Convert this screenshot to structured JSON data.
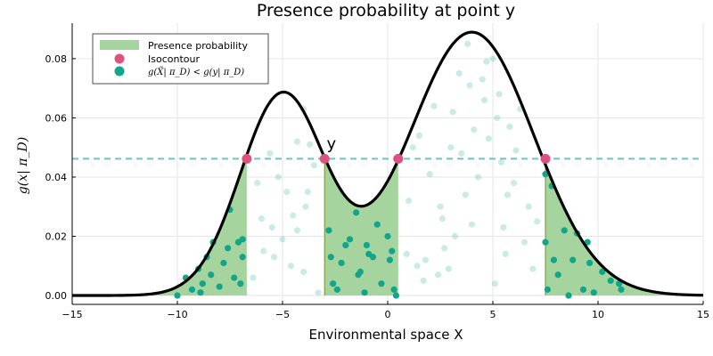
{
  "chart_data": {
    "type": "area",
    "title": "Presence probability at point y",
    "xlabel": "Environmental space X",
    "ylabel": "g(x| π_D)",
    "xlim": [
      -15,
      15
    ],
    "ylim": [
      -0.003,
      0.092
    ],
    "xticks": [
      -15,
      -10,
      -5,
      0,
      5,
      10,
      15
    ],
    "xtick_labels": [
      "−15",
      "−10",
      "−5",
      "0",
      "5",
      "10",
      "15"
    ],
    "yticks": [
      0.0,
      0.02,
      0.04,
      0.06,
      0.08
    ],
    "ytick_labels": [
      "0.00",
      "0.02",
      "0.04",
      "0.06",
      "0.08"
    ],
    "grid": true,
    "legend_position": "top-left",
    "colors": {
      "fill": "#a6d49f",
      "curve": "#000000",
      "isocontour": "#e0517f",
      "points": "#12a58a",
      "threshold_line": "#6cc3cb"
    },
    "density_components": [
      {
        "weight": 0.34,
        "mean": -5.0,
        "sd": 2.0
      },
      {
        "weight": 0.66,
        "mean": 4.0,
        "sd": 2.96
      }
    ],
    "threshold": 0.0462,
    "filled_intervals": [
      [
        -15,
        -6.7
      ],
      [
        -3.0,
        0.5
      ],
      [
        7.5,
        15
      ]
    ],
    "annotation": {
      "text": "y",
      "x": -2.9,
      "y": 0.0495
    },
    "isocontour_points": [
      {
        "x": -6.7,
        "y": 0.0462
      },
      {
        "x": -3.0,
        "y": 0.0462
      },
      {
        "x": 0.5,
        "y": 0.0462
      },
      {
        "x": 7.5,
        "y": 0.0462
      }
    ],
    "series": [
      {
        "name": "Presence probability",
        "kind": "filled-area"
      },
      {
        "name": "Isocontour",
        "kind": "marker"
      },
      {
        "name": "g(X̃| π_D) < g(y| π_D)",
        "kind": "scatter"
      }
    ],
    "points_below": [
      {
        "x": -10.0,
        "y": 0.0
      },
      {
        "x": -9.6,
        "y": 0.006
      },
      {
        "x": -9.3,
        "y": 0.002
      },
      {
        "x": -9.0,
        "y": 0.009
      },
      {
        "x": -8.8,
        "y": 0.004
      },
      {
        "x": -8.6,
        "y": 0.013
      },
      {
        "x": -8.4,
        "y": 0.007
      },
      {
        "x": -8.3,
        "y": 0.018
      },
      {
        "x": -8.0,
        "y": 0.003
      },
      {
        "x": -7.8,
        "y": 0.011
      },
      {
        "x": -7.6,
        "y": 0.016
      },
      {
        "x": -7.5,
        "y": 0.029
      },
      {
        "x": -7.3,
        "y": 0.006
      },
      {
        "x": -7.1,
        "y": 0.018
      },
      {
        "x": -6.9,
        "y": 0.019
      },
      {
        "x": -6.9,
        "y": 0.013
      },
      {
        "x": -7.0,
        "y": 0.004
      },
      {
        "x": -8.9,
        "y": 0.001
      },
      {
        "x": -2.8,
        "y": 0.022
      },
      {
        "x": -2.6,
        "y": 0.004
      },
      {
        "x": -2.4,
        "y": 0.002
      },
      {
        "x": -2.2,
        "y": 0.011
      },
      {
        "x": -2.0,
        "y": 0.017
      },
      {
        "x": -1.8,
        "y": 0.019
      },
      {
        "x": -1.5,
        "y": 0.028
      },
      {
        "x": -1.4,
        "y": 0.007
      },
      {
        "x": -1.3,
        "y": 0.008
      },
      {
        "x": -1.0,
        "y": 0.017
      },
      {
        "x": -0.9,
        "y": 0.014
      },
      {
        "x": -0.7,
        "y": 0.013
      },
      {
        "x": -0.5,
        "y": 0.024
      },
      {
        "x": -0.3,
        "y": 0.004
      },
      {
        "x": 0.0,
        "y": 0.02
      },
      {
        "x": 0.1,
        "y": 0.012
      },
      {
        "x": 0.2,
        "y": 0.015
      },
      {
        "x": 0.3,
        "y": 0.002
      },
      {
        "x": 0.4,
        "y": 0.0
      },
      {
        "x": -1.1,
        "y": 0.001
      },
      {
        "x": -2.7,
        "y": 0.013
      },
      {
        "x": 7.5,
        "y": 0.041
      },
      {
        "x": 7.5,
        "y": 0.018
      },
      {
        "x": 7.6,
        "y": 0.002
      },
      {
        "x": 7.8,
        "y": 0.037
      },
      {
        "x": 7.9,
        "y": 0.012
      },
      {
        "x": 8.1,
        "y": 0.007
      },
      {
        "x": 8.4,
        "y": 0.022
      },
      {
        "x": 8.6,
        "y": 0.0
      },
      {
        "x": 8.8,
        "y": 0.012
      },
      {
        "x": 9.0,
        "y": 0.021
      },
      {
        "x": 9.3,
        "y": 0.002
      },
      {
        "x": 9.5,
        "y": 0.018
      },
      {
        "x": 9.6,
        "y": 0.011
      },
      {
        "x": 9.8,
        "y": 0.001
      },
      {
        "x": 10.2,
        "y": 0.008
      },
      {
        "x": 10.6,
        "y": 0.005
      },
      {
        "x": 11.0,
        "y": 0.004
      },
      {
        "x": 11.1,
        "y": 0.002
      }
    ],
    "points_above": [
      {
        "x": -5.6,
        "y": 0.048
      },
      {
        "x": -5.2,
        "y": 0.04
      },
      {
        "x": -5.5,
        "y": 0.023
      },
      {
        "x": -6.2,
        "y": 0.038
      },
      {
        "x": -5.9,
        "y": 0.015
      },
      {
        "x": -6.0,
        "y": 0.026
      },
      {
        "x": -4.8,
        "y": 0.035
      },
      {
        "x": -4.5,
        "y": 0.027
      },
      {
        "x": -4.3,
        "y": 0.052
      },
      {
        "x": -4.0,
        "y": 0.063
      },
      {
        "x": -3.9,
        "y": 0.03
      },
      {
        "x": -3.7,
        "y": 0.051
      },
      {
        "x": -3.5,
        "y": 0.044
      },
      {
        "x": -4.6,
        "y": 0.01
      },
      {
        "x": -3.3,
        "y": 0.001
      },
      {
        "x": -5.0,
        "y": 0.019
      },
      {
        "x": -4.0,
        "y": 0.008
      },
      {
        "x": -6.4,
        "y": 0.006
      },
      {
        "x": -5.4,
        "y": 0.013
      },
      {
        "x": -3.8,
        "y": 0.035
      },
      {
        "x": -4.3,
        "y": 0.022
      },
      {
        "x": 0.9,
        "y": 0.014
      },
      {
        "x": 1.2,
        "y": 0.05
      },
      {
        "x": 1.5,
        "y": 0.054
      },
      {
        "x": 1.4,
        "y": 0.01
      },
      {
        "x": 1.8,
        "y": 0.012
      },
      {
        "x": 2.0,
        "y": 0.041
      },
      {
        "x": 2.2,
        "y": 0.064
      },
      {
        "x": 2.5,
        "y": 0.03
      },
      {
        "x": 2.6,
        "y": 0.026
      },
      {
        "x": 2.7,
        "y": 0.016
      },
      {
        "x": 3.0,
        "y": 0.05
      },
      {
        "x": 3.1,
        "y": 0.062
      },
      {
        "x": 3.2,
        "y": 0.02
      },
      {
        "x": 3.4,
        "y": 0.075
      },
      {
        "x": 3.5,
        "y": 0.048
      },
      {
        "x": 3.7,
        "y": 0.034
      },
      {
        "x": 3.9,
        "y": 0.071
      },
      {
        "x": 4.1,
        "y": 0.056
      },
      {
        "x": 4.3,
        "y": 0.04
      },
      {
        "x": 4.6,
        "y": 0.066
      },
      {
        "x": 4.5,
        "y": 0.073
      },
      {
        "x": 4.8,
        "y": 0.053
      },
      {
        "x": 5.0,
        "y": 0.08
      },
      {
        "x": 5.2,
        "y": 0.06
      },
      {
        "x": 5.4,
        "y": 0.045
      },
      {
        "x": 5.5,
        "y": 0.023
      },
      {
        "x": 5.6,
        "y": 0.014
      },
      {
        "x": 5.7,
        "y": 0.034
      },
      {
        "x": 5.8,
        "y": 0.057
      },
      {
        "x": 6.1,
        "y": 0.049
      },
      {
        "x": 6.3,
        "y": 0.063
      },
      {
        "x": 6.5,
        "y": 0.018
      },
      {
        "x": 6.7,
        "y": 0.03
      },
      {
        "x": 6.9,
        "y": 0.009
      },
      {
        "x": 7.1,
        "y": 0.025
      },
      {
        "x": 1.7,
        "y": 0.005
      },
      {
        "x": 2.9,
        "y": 0.009
      },
      {
        "x": 4.0,
        "y": 0.024
      },
      {
        "x": 5.1,
        "y": 0.004
      },
      {
        "x": 6.0,
        "y": 0.038
      },
      {
        "x": 1.0,
        "y": 0.032
      },
      {
        "x": 3.8,
        "y": 0.085
      },
      {
        "x": 4.7,
        "y": 0.079
      },
      {
        "x": 5.3,
        "y": 0.068
      },
      {
        "x": 2.4,
        "y": 0.007
      }
    ]
  }
}
